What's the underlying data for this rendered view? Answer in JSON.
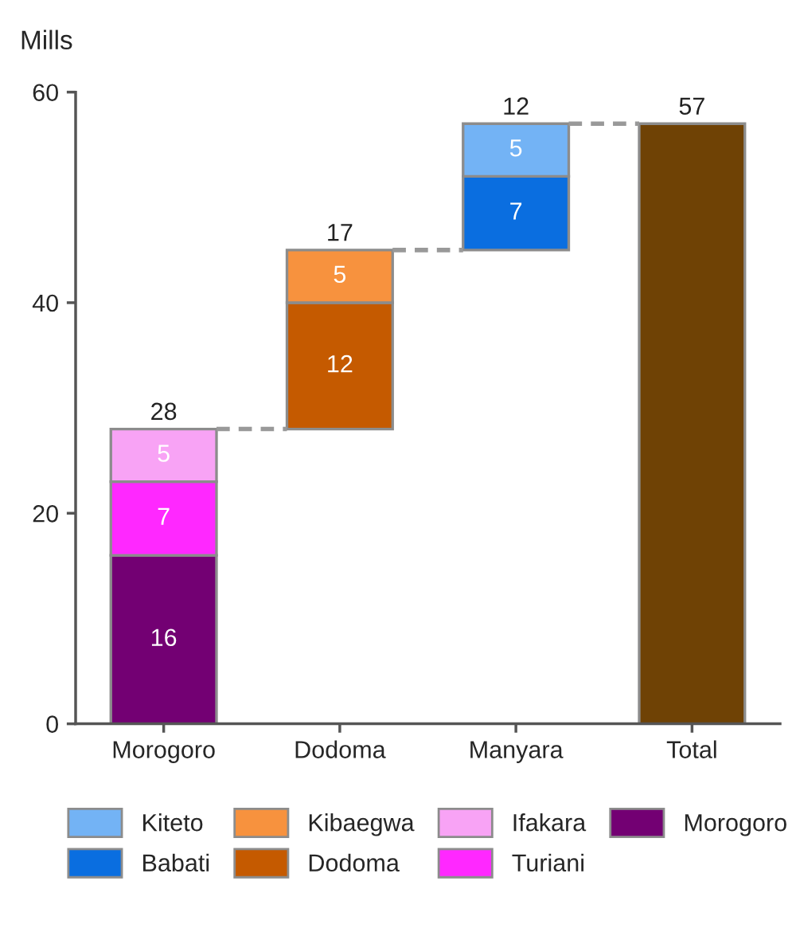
{
  "chart_data": {
    "type": "bar",
    "ylabel": "Mills",
    "categories": [
      "Morogoro",
      "Dodoma",
      "Manyara",
      "Total"
    ],
    "ylim": [
      0,
      60
    ],
    "yticks": [
      0,
      20,
      40,
      60
    ],
    "legend": "bottom",
    "totals": [
      "28",
      "17",
      "12",
      "57"
    ],
    "series": [
      {
        "name": "Morogoro",
        "color": "#730073",
        "values": [
          16,
          null,
          null,
          null
        ],
        "base": [
          0,
          null,
          null,
          null
        ],
        "value_labels": [
          "16",
          null,
          null,
          null
        ]
      },
      {
        "name": "Turiani",
        "color": "#ff28ff",
        "values": [
          7,
          null,
          null,
          null
        ],
        "base": [
          16,
          null,
          null,
          null
        ],
        "value_labels": [
          "7",
          null,
          null,
          null
        ]
      },
      {
        "name": "Ifakara",
        "color": "#f8a3f5",
        "values": [
          5,
          null,
          null,
          null
        ],
        "base": [
          23,
          null,
          null,
          null
        ],
        "value_labels": [
          "5",
          null,
          null,
          null
        ]
      },
      {
        "name": "Dodoma",
        "color": "#c55a00",
        "values": [
          null,
          12,
          null,
          null
        ],
        "base": [
          null,
          28,
          null,
          null
        ],
        "value_labels": [
          null,
          "12",
          null,
          null
        ]
      },
      {
        "name": "Kibaegwa",
        "color": "#f7923e",
        "values": [
          null,
          5,
          null,
          null
        ],
        "base": [
          null,
          40,
          null,
          null
        ],
        "value_labels": [
          null,
          "5",
          null,
          null
        ]
      },
      {
        "name": "Babati",
        "color": "#0a6ee0",
        "values": [
          null,
          null,
          7,
          null
        ],
        "base": [
          null,
          null,
          45,
          null
        ],
        "value_labels": [
          null,
          null,
          "7",
          null
        ]
      },
      {
        "name": "Kiteto",
        "color": "#73b3f5",
        "values": [
          null,
          null,
          5,
          null
        ],
        "base": [
          null,
          null,
          52,
          null
        ],
        "value_labels": [
          null,
          null,
          "5",
          null
        ]
      },
      {
        "color": "#6f4205",
        "values": [
          null,
          null,
          null,
          57
        ],
        "base": [
          null,
          null,
          null,
          0
        ]
      }
    ]
  }
}
